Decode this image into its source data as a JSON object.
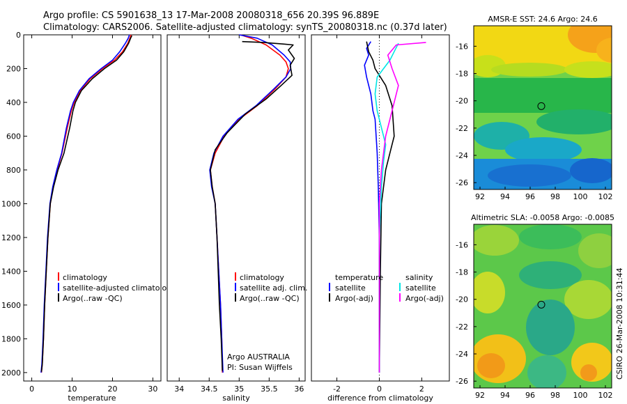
{
  "header": {
    "line1": "Argo profile: CS 5901638_13 17-Mar-2008 20080318_656 20.39S 96.889E",
    "line2": "Climatology: CARS2006. Satellite-adjusted climatology: synTS_20080318.nc (0.37d later)"
  },
  "colors": {
    "climatology": "#ff0000",
    "satellite": "#0000ff",
    "argo": "#000000",
    "sal_satellite": "#00e5e5",
    "sal_argo": "#ff00ff"
  },
  "chart_data": [
    {
      "type": "line",
      "xlabel": "temperature",
      "ylabel": "",
      "xlim": [
        -2,
        32
      ],
      "ylim": [
        2050,
        0
      ],
      "xticks": [
        0,
        10,
        20,
        30
      ],
      "yticks": [
        0,
        200,
        400,
        600,
        800,
        1000,
        1200,
        1400,
        1600,
        1800,
        2000
      ],
      "legend": [
        "climatology",
        "satellite-adjusted climatology",
        "Argo(..raw -QC)"
      ],
      "legend_display": [
        "climatology",
        "satellite-adjusted climatolog",
        "Argo(..raw -QC)"
      ],
      "series": [
        {
          "name": "climatology",
          "color": "#ff0000",
          "x": [
            24.6,
            24.3,
            23.8,
            22.5,
            20.5,
            17.5,
            14.5,
            12.0,
            10.5,
            9.8,
            8.8,
            7.5,
            6.3,
            5.3,
            4.6,
            4.0,
            3.6,
            3.2,
            2.9,
            2.6,
            2.4
          ],
          "y": [
            0,
            20,
            50,
            100,
            150,
            200,
            260,
            330,
            400,
            450,
            550,
            700,
            800,
            900,
            1000,
            1200,
            1400,
            1600,
            1800,
            1950,
            2000
          ]
        },
        {
          "name": "satellite-adjusted climatology",
          "color": "#0000ff",
          "x": [
            24.2,
            23.9,
            23.2,
            21.8,
            20.0,
            17.2,
            14.2,
            11.8,
            10.3,
            9.6,
            8.6,
            7.4,
            6.2,
            5.2,
            4.5,
            3.9,
            3.5,
            3.1,
            2.8,
            2.5,
            2.3
          ],
          "y": [
            0,
            20,
            50,
            100,
            150,
            200,
            260,
            330,
            400,
            450,
            550,
            700,
            800,
            900,
            1000,
            1200,
            1400,
            1600,
            1800,
            1950,
            2000
          ]
        },
        {
          "name": "Argo(..raw -QC)",
          "color": "#000000",
          "x": [
            24.8,
            24.5,
            24.0,
            22.8,
            21.0,
            18.0,
            15.0,
            12.3,
            10.8,
            10.2,
            9.4,
            8.0,
            6.5,
            5.4,
            4.6,
            4.0,
            3.6,
            3.2,
            2.9,
            2.6,
            2.4
          ],
          "y": [
            5,
            20,
            50,
            100,
            150,
            200,
            260,
            330,
            400,
            450,
            550,
            700,
            800,
            900,
            1000,
            1200,
            1400,
            1600,
            1800,
            1950,
            1995
          ]
        }
      ],
      "annotations": []
    },
    {
      "type": "line",
      "xlabel": "salinity",
      "ylabel": "",
      "xlim": [
        33.8,
        36.1
      ],
      "ylim": [
        2050,
        0
      ],
      "xticks": [
        34,
        34.5,
        35,
        35.5,
        36
      ],
      "yticks": [],
      "legend": [
        "climatology",
        "satellite adj. clim.",
        "Argo(..raw -QC)"
      ],
      "series": [
        {
          "name": "climatology",
          "color": "#ff0000",
          "x": [
            35.02,
            35.2,
            35.45,
            35.68,
            35.78,
            35.82,
            35.78,
            35.6,
            35.3,
            35.0,
            34.75,
            34.6,
            34.52,
            34.55,
            34.6,
            34.63,
            34.66,
            34.69,
            34.71,
            34.72
          ],
          "y": [
            0,
            20,
            60,
            120,
            160,
            200,
            250,
            320,
            420,
            500,
            600,
            700,
            800,
            900,
            1000,
            1200,
            1400,
            1600,
            1800,
            2000
          ]
        },
        {
          "name": "satellite adj. clim.",
          "color": "#0000ff",
          "x": [
            35.0,
            35.3,
            35.55,
            35.75,
            35.85,
            35.86,
            35.78,
            35.58,
            35.28,
            34.98,
            34.73,
            34.58,
            34.51,
            34.54,
            34.6,
            34.63,
            34.66,
            34.69,
            34.71,
            34.73
          ],
          "y": [
            0,
            20,
            60,
            120,
            160,
            200,
            250,
            320,
            420,
            500,
            600,
            700,
            800,
            900,
            1000,
            1200,
            1400,
            1600,
            1800,
            2000
          ]
        },
        {
          "name": "Argo(..raw -QC)",
          "color": "#000000",
          "x": [
            35.05,
            35.4,
            35.75,
            35.9,
            35.82,
            35.92,
            35.85,
            35.88,
            35.7,
            35.45,
            35.1,
            34.8,
            34.6,
            34.52,
            34.55,
            34.6,
            34.63,
            34.65,
            34.67,
            34.7,
            34.72
          ],
          "y": [
            40,
            45,
            55,
            60,
            90,
            140,
            180,
            240,
            300,
            380,
            470,
            580,
            680,
            800,
            900,
            1000,
            1200,
            1400,
            1600,
            1800,
            1990
          ]
        }
      ],
      "annotations": [
        "Argo AUSTRALIA",
        "PI: Susan Wijffels"
      ]
    },
    {
      "type": "line",
      "xlabel": "difference from climatology",
      "ylabel": "",
      "xlim": [
        -3.2,
        3.3
      ],
      "ylim": [
        2050,
        0
      ],
      "xticks": [
        -2,
        0,
        2
      ],
      "yticks": [],
      "legend": [
        "temperature",
        "satellite",
        "Argo(-adj)",
        "salinity",
        "satellite",
        "Argo(-adj)"
      ],
      "series": [
        {
          "name": "satellite",
          "color": "#0000ff",
          "x": [
            -0.4,
            -0.6,
            -0.5,
            -0.7,
            -0.6,
            -0.4,
            -0.3,
            -0.2,
            -0.1,
            -0.05,
            0.0,
            0.0
          ],
          "y": [
            40,
            80,
            120,
            180,
            250,
            350,
            450,
            500,
            700,
            900,
            1200,
            2000
          ]
        },
        {
          "name": "Argo(-adj)",
          "color": "#000000",
          "x": [
            -0.6,
            -0.5,
            -0.3,
            -0.2,
            0.3,
            0.6,
            0.7,
            0.5,
            0.3,
            0.1,
            0.05,
            0.0
          ],
          "y": [
            40,
            100,
            150,
            200,
            300,
            420,
            600,
            700,
            800,
            1000,
            1400,
            2000
          ]
        },
        {
          "name": "satellite",
          "color": "#00e5e5",
          "x": [
            0.9,
            0.7,
            0.5,
            -0.1,
            -0.2,
            -0.1,
            0.1,
            0.3,
            0.2,
            0.1,
            0.0,
            0.0
          ],
          "y": [
            50,
            100,
            150,
            250,
            350,
            450,
            550,
            650,
            750,
            900,
            1200,
            2000
          ]
        },
        {
          "name": "Argo(-adj)",
          "color": "#ff00ff",
          "x": [
            2.2,
            0.8,
            0.4,
            0.6,
            0.9,
            0.7,
            0.3,
            0.1,
            0.0,
            0.0,
            0.0
          ],
          "y": [
            45,
            60,
            120,
            200,
            300,
            400,
            600,
            800,
            1000,
            1300,
            2000
          ]
        }
      ],
      "annotations": []
    },
    {
      "type": "heatmap",
      "title": "AMSR-E SST: 24.6 Argo: 24.6",
      "xlim": [
        91.5,
        102.5
      ],
      "ylim": [
        -26.5,
        -14.5
      ],
      "xticks": [
        92,
        94,
        96,
        98,
        100,
        102
      ],
      "yticks": [
        -16,
        -18,
        -20,
        -22,
        -24,
        -26
      ],
      "marker": {
        "x": 96.889,
        "y": -20.39
      }
    },
    {
      "type": "heatmap",
      "title": "Altimetric SLA: -0.0058 Argo: -0.0085",
      "xlim": [
        91.5,
        102.5
      ],
      "ylim": [
        -26.5,
        -14.5
      ],
      "xticks": [
        92,
        94,
        96,
        98,
        100,
        102
      ],
      "yticks": [
        -16,
        -18,
        -20,
        -22,
        -24,
        -26
      ],
      "marker": {
        "x": 96.889,
        "y": -20.39
      }
    }
  ],
  "footer": {
    "stamp": "CSIRO 26-Mar-2008 10:31:44"
  }
}
